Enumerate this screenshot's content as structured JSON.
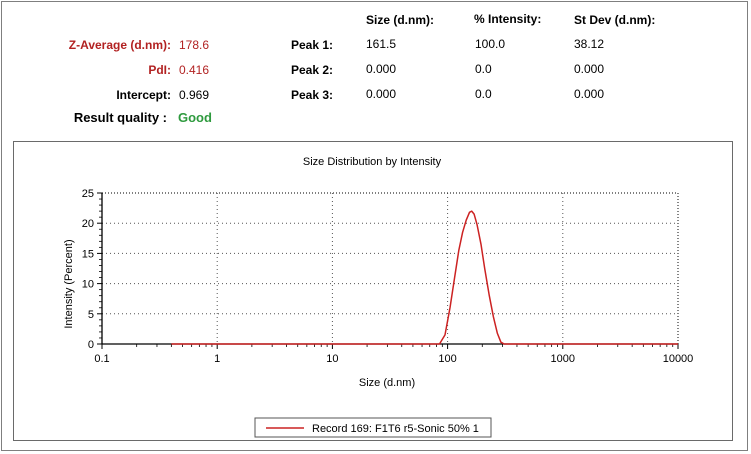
{
  "summary": {
    "z_average_label": "Z-Average (d.nm):",
    "z_average_value": "178.6",
    "pdi_label": "PdI:",
    "pdi_value": "0.416",
    "intercept_label": "Intercept:",
    "intercept_value": "0.969",
    "quality_label": "Result quality :",
    "quality_value": "Good"
  },
  "peaks_table": {
    "headers": [
      "Size (d.nm):",
      "% Intensity:",
      "St Dev (d.nm):"
    ],
    "rows": [
      {
        "label": "Peak 1:",
        "size": "161.5",
        "intensity": "100.0",
        "stdev": "38.12"
      },
      {
        "label": "Peak 2:",
        "size": "0.000",
        "intensity": "0.0",
        "stdev": "0.000"
      },
      {
        "label": "Peak 3:",
        "size": "0.000",
        "intensity": "0.0",
        "stdev": "0.000"
      }
    ]
  },
  "colors": {
    "label_red": "#b22222",
    "quality_green": "#2e9a3e",
    "series_line": "#cc2222"
  },
  "chart_data": {
    "type": "line",
    "title": "Size Distribution by Intensity",
    "xlabel": "Size (d.nm)",
    "ylabel": "Intensity (Percent)",
    "x_scale": "log",
    "xlim": [
      0.1,
      10000
    ],
    "ylim": [
      0,
      25
    ],
    "x_ticks": [
      "0.1",
      "1",
      "10",
      "100",
      "1000",
      "10000"
    ],
    "y_ticks": [
      "0",
      "5",
      "10",
      "15",
      "20",
      "25"
    ],
    "grid": true,
    "legend_position": "bottom-center",
    "series": [
      {
        "name": "Record 169: F1T6 r5-Sonic 50% 1",
        "x": [
          0.4,
          1,
          10,
          60,
          85,
          95,
          105,
          115,
          125,
          135,
          145,
          155,
          162,
          170,
          180,
          195,
          210,
          230,
          250,
          270,
          290,
          310,
          1000,
          10000
        ],
        "y": [
          0,
          0,
          0,
          0,
          0,
          1.5,
          6,
          11,
          15.5,
          18.5,
          20.5,
          21.8,
          22,
          21.5,
          19.8,
          16.5,
          12.5,
          8,
          4.5,
          1.8,
          0.3,
          0,
          0,
          0
        ]
      }
    ]
  }
}
